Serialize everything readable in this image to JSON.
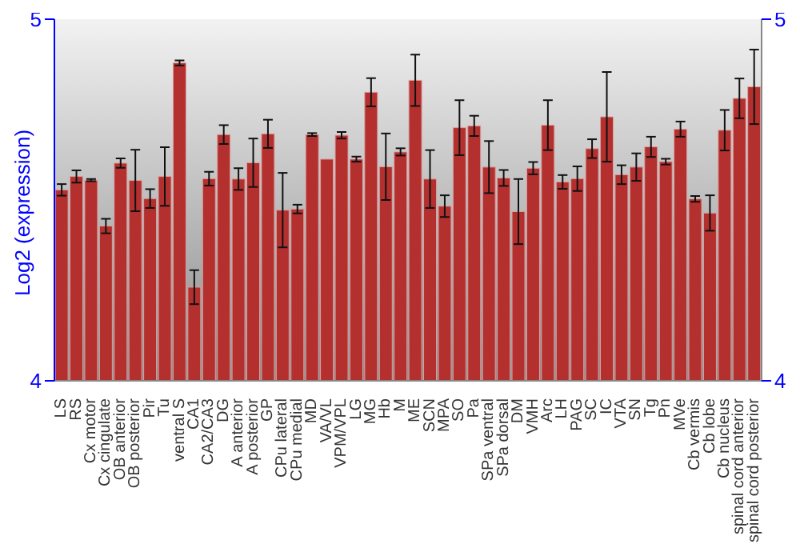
{
  "chart_data": {
    "type": "bar",
    "ylabel": "Log2 (expression)",
    "categories": [
      "LS",
      "RS",
      "Cx motor",
      "Cx cingulate",
      "OB anterior",
      "OB posterior",
      "Pir",
      "Tu",
      "ventral S",
      "CA1",
      "CA2/CA3",
      "DG",
      "A anterior",
      "A posterior",
      "GP",
      "CPu lateral",
      "CPu medial",
      "MD",
      "VA/VL",
      "VPM/VPL",
      "LG",
      "MG",
      "Hb",
      "M",
      "ME",
      "SCN",
      "MPA",
      "SO",
      "Pa",
      "SPa ventral",
      "SPa dorsal",
      "DM",
      "VMH",
      "Arc",
      "LH",
      "PAG",
      "SC",
      "IC",
      "VTA",
      "SN",
      "Tg",
      "Pn",
      "MVe",
      "Cb vermis",
      "Cb lobe",
      "Cb nucleus",
      "spinal cord anterior",
      "spinal cord posterior"
    ],
    "values": [
      4.528,
      4.565,
      4.555,
      4.428,
      4.602,
      4.554,
      4.504,
      4.565,
      4.879,
      4.259,
      4.559,
      4.681,
      4.558,
      4.603,
      4.683,
      4.472,
      4.475,
      4.681,
      4.613,
      4.679,
      4.613,
      4.798,
      4.592,
      4.633,
      4.831,
      4.558,
      4.483,
      4.7,
      4.705,
      4.591,
      4.561,
      4.468,
      4.588,
      4.707,
      4.55,
      4.559,
      4.642,
      4.73,
      4.57,
      4.591,
      4.647,
      4.606,
      4.696,
      4.503,
      4.464,
      4.693,
      4.781,
      4.813
    ],
    "errors": [
      0.016,
      0.017,
      0.003,
      0.02,
      0.013,
      0.085,
      0.026,
      0.081,
      0.007,
      0.047,
      0.019,
      0.026,
      0.03,
      0.067,
      0.039,
      0.103,
      0.012,
      0.004,
      null,
      0.009,
      0.007,
      0.039,
      0.092,
      0.01,
      0.071,
      0.08,
      0.03,
      0.076,
      0.028,
      0.072,
      0.022,
      0.09,
      0.017,
      0.069,
      0.019,
      0.034,
      0.026,
      0.124,
      0.026,
      0.038,
      0.028,
      0.008,
      0.021,
      0.008,
      0.049,
      0.056,
      0.055,
      0.103
    ],
    "color": "#b3302f",
    "ylim": [
      4,
      5
    ],
    "yticks": [
      4,
      5
    ],
    "y2lim": [
      4,
      5
    ],
    "y2ticks": [
      4,
      5
    ],
    "grid": false
  }
}
